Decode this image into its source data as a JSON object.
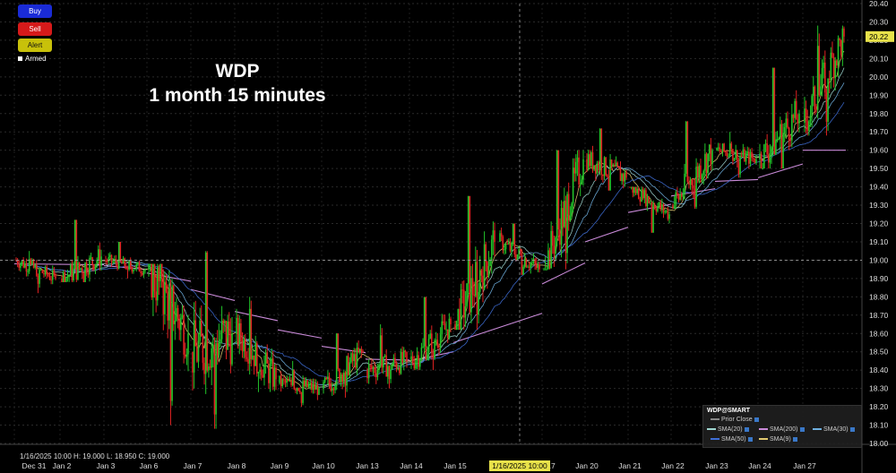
{
  "toolbar": {
    "buy_label": "Buy",
    "sell_label": "Sell",
    "alert_label": "Alert",
    "armed_label": "Armed"
  },
  "title_line1": "WDP",
  "title_line2": "1 month 15 minutes",
  "ohlc_readout": "1/16/2025 10:00  H: 19.000  L: 18.950  C: 19.000",
  "legend": {
    "symbol": "WDP@SMART",
    "prior_close": "Prior Close",
    "sma20": "SMA(20)",
    "sma200": "SMA(200)",
    "sma30": "SMA(30)",
    "sma50": "SMA(50)",
    "sma9": "SMA(9)"
  },
  "colors": {
    "up": "#22c42a",
    "down": "#e02222",
    "sma200": "#c98ad8",
    "sma50": "#3f6fd8",
    "sma30": "#6fb0e0",
    "sma20": "#9fd6d0",
    "sma9": "#e0c870",
    "crosshair": "#999999",
    "current_price_bg": "#e8e24a"
  },
  "chart_data": {
    "type": "candlestick",
    "y_ticks": [
      "20.40",
      "20.30",
      "20.20",
      "20.10",
      "20.00",
      "19.90",
      "19.80",
      "19.70",
      "19.60",
      "19.50",
      "19.40",
      "19.30",
      "19.20",
      "19.10",
      "19.00",
      "18.90",
      "18.80",
      "18.70",
      "18.60",
      "18.50",
      "18.40",
      "18.30",
      "18.20",
      "18.10",
      "18.00"
    ],
    "ylim": [
      18.0,
      20.4
    ],
    "current_price": "20.22",
    "x_ticks": [
      "Dec 31",
      "Jan 2",
      "Jan 3",
      "Jan 6",
      "Jan 7",
      "Jan 8",
      "Jan 9",
      "Jan 10",
      "Jan 13",
      "Jan 14",
      "Jan 15",
      "Jan 17",
      "Jan 20",
      "Jan 21",
      "Jan 22",
      "Jan 23",
      "Jan 24",
      "Jan 27"
    ],
    "crosshair_date": "1/16/2025 10:00",
    "crosshair_price": 19.0,
    "sessions": [
      {
        "date": "Dec 31",
        "open": 19.0,
        "close": 18.9,
        "high": 19.05,
        "low": 18.82
      },
      {
        "date": "Jan 2",
        "open": 18.9,
        "close": 19.02,
        "high": 19.22,
        "low": 18.88
      },
      {
        "date": "Jan 3",
        "open": 19.0,
        "close": 18.95,
        "high": 19.1,
        "low": 18.9
      },
      {
        "date": "Jan 6",
        "open": 18.95,
        "close": 18.6,
        "high": 18.98,
        "low": 18.1
      },
      {
        "date": "Jan 7",
        "open": 18.5,
        "close": 18.6,
        "high": 19.05,
        "low": 18.08
      },
      {
        "date": "Jan 8",
        "open": 18.6,
        "close": 18.35,
        "high": 18.8,
        "low": 18.28
      },
      {
        "date": "Jan 9",
        "open": 18.33,
        "close": 18.3,
        "high": 18.45,
        "low": 18.2
      },
      {
        "date": "Jan 10",
        "open": 18.3,
        "close": 18.5,
        "high": 18.6,
        "low": 18.25
      },
      {
        "date": "Jan 13",
        "open": 18.4,
        "close": 18.45,
        "high": 18.65,
        "low": 18.3
      },
      {
        "date": "Jan 14",
        "open": 18.45,
        "close": 18.65,
        "high": 18.8,
        "low": 18.4
      },
      {
        "date": "Jan 15",
        "open": 18.65,
        "close": 19.1,
        "high": 19.35,
        "low": 18.62
      },
      {
        "date": "Jan 16",
        "open": 19.1,
        "close": 18.95,
        "high": 19.2,
        "low": 18.92
      },
      {
        "date": "Jan 17",
        "open": 18.95,
        "close": 19.55,
        "high": 19.6,
        "low": 18.95
      },
      {
        "date": "Jan 20",
        "open": 19.55,
        "close": 19.45,
        "high": 19.72,
        "low": 19.38
      },
      {
        "date": "Jan 21",
        "open": 19.4,
        "close": 19.25,
        "high": 19.4,
        "low": 19.15
      },
      {
        "date": "Jan 22",
        "open": 19.3,
        "close": 19.6,
        "high": 19.76,
        "low": 19.28
      },
      {
        "date": "Jan 23",
        "open": 19.6,
        "close": 19.55,
        "high": 19.7,
        "low": 19.45
      },
      {
        "date": "Jan 24",
        "open": 19.55,
        "close": 19.8,
        "high": 20.05,
        "low": 19.5
      },
      {
        "date": "Jan 27",
        "open": 19.75,
        "close": 20.22,
        "high": 20.28,
        "low": 19.68
      }
    ],
    "sma200_points": [
      {
        "date": "Dec 31",
        "value": 18.98
      },
      {
        "date": "Jan 3",
        "value": 18.97
      },
      {
        "date": "Jan 6",
        "value": 18.93
      },
      {
        "date": "Jan 7",
        "value": 18.84
      },
      {
        "date": "Jan 8",
        "value": 18.72
      },
      {
        "date": "Jan 9",
        "value": 18.62
      },
      {
        "date": "Jan 10",
        "value": 18.53
      },
      {
        "date": "Jan 13",
        "value": 18.46
      },
      {
        "date": "Jan 14",
        "value": 18.45
      },
      {
        "date": "Jan 15",
        "value": 18.55
      },
      {
        "date": "Jan 17",
        "value": 18.87
      },
      {
        "date": "Jan 20",
        "value": 19.1
      },
      {
        "date": "Jan 21",
        "value": 19.26
      },
      {
        "date": "Jan 22",
        "value": 19.35
      },
      {
        "date": "Jan 23",
        "value": 19.43
      },
      {
        "date": "Jan 24",
        "value": 19.45
      },
      {
        "date": "Jan 27",
        "value": 19.6
      }
    ]
  }
}
